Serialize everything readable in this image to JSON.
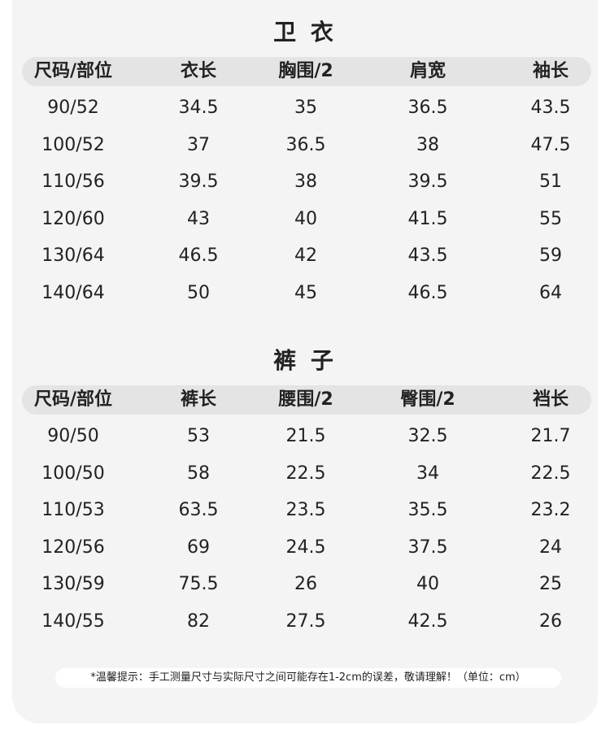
{
  "tables": [
    {
      "title": "卫 衣",
      "header": [
        "尺码/部位",
        "衣长",
        "胸围/2",
        "肩宽",
        "袖长"
      ],
      "rows": [
        [
          "90/52",
          "34.5",
          "35",
          "36.5",
          "43.5"
        ],
        [
          "100/52",
          "37",
          "36.5",
          "38",
          "47.5"
        ],
        [
          "110/56",
          "39.5",
          "38",
          "39.5",
          "51"
        ],
        [
          "120/60",
          "43",
          "40",
          "41.5",
          "55"
        ],
        [
          "130/64",
          "46.5",
          "42",
          "43.5",
          "59"
        ],
        [
          "140/64",
          "50",
          "45",
          "46.5",
          "64"
        ]
      ]
    },
    {
      "title": "裤 子",
      "header": [
        "尺码/部位",
        "裤长",
        "腰围/2",
        "臀围/2",
        "裆长"
      ],
      "rows": [
        [
          "90/50",
          "53",
          "21.5",
          "32.5",
          "21.7"
        ],
        [
          "100/50",
          "58",
          "22.5",
          "34",
          "22.5"
        ],
        [
          "110/53",
          "63.5",
          "23.5",
          "35.5",
          "23.2"
        ],
        [
          "120/56",
          "69",
          "24.5",
          "37.5",
          "24"
        ],
        [
          "130/59",
          "75.5",
          "26",
          "40",
          "25"
        ],
        [
          "140/55",
          "82",
          "27.5",
          "42.5",
          "26"
        ]
      ]
    }
  ],
  "note": "*温馨提示：手工测量尺寸与实际尺寸之间可能存在1-2cm的误差，敬请理解！（单位：cm）"
}
